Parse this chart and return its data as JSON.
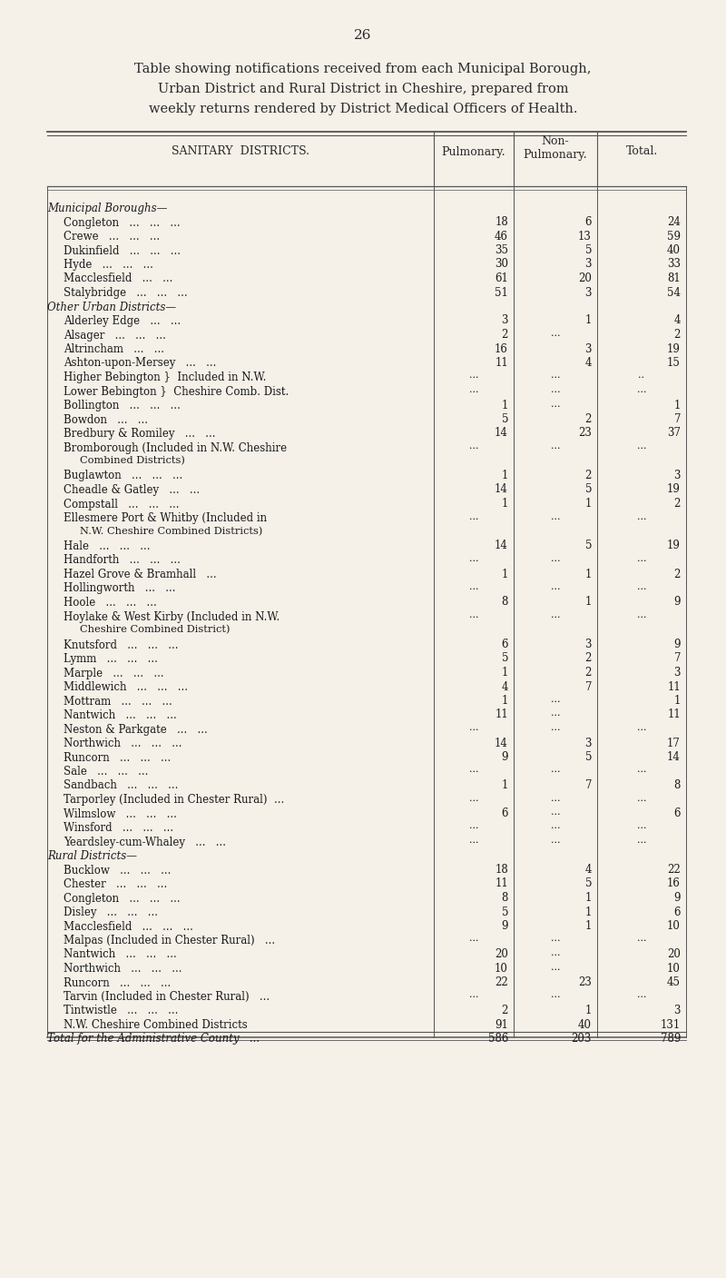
{
  "page_number": "26",
  "title_lines": [
    "Table showing notifications received from each Municipal Borough,",
    "Urban District and Rural District in Cheshire, prepared from",
    "weekly returns rendered by District Medical Officers of Health."
  ],
  "background_color": "#f5f0e8",
  "rows": [
    {
      "indent": 0,
      "section": true,
      "text": "Municipal Boroughs—",
      "pulm": "",
      "nonpulm": "",
      "total": ""
    },
    {
      "indent": 1,
      "section": false,
      "text": "Congleton   ...   ...   ...",
      "pulm": "18",
      "nonpulm": "6",
      "total": "24"
    },
    {
      "indent": 1,
      "section": false,
      "text": "Crewe   ...   ...   ...",
      "pulm": "46",
      "nonpulm": "13",
      "total": "59"
    },
    {
      "indent": 1,
      "section": false,
      "text": "Dukinfield   ...   ...   ...",
      "pulm": "35",
      "nonpulm": "5",
      "total": "40"
    },
    {
      "indent": 1,
      "section": false,
      "text": "Hyde   ...   ...   ...",
      "pulm": "30",
      "nonpulm": "3",
      "total": "33"
    },
    {
      "indent": 1,
      "section": false,
      "text": "Macclesfield   ...   ...",
      "pulm": "61",
      "nonpulm": "20",
      "total": "81"
    },
    {
      "indent": 1,
      "section": false,
      "text": "Stalybridge   ...   ...   ...",
      "pulm": "51",
      "nonpulm": "3",
      "total": "54"
    },
    {
      "indent": 0,
      "section": true,
      "text": "Other Urban Districts—",
      "pulm": "",
      "nonpulm": "",
      "total": ""
    },
    {
      "indent": 1,
      "section": false,
      "text": "Alderley Edge   ...   ...",
      "pulm": "3",
      "nonpulm": "1",
      "total": "4"
    },
    {
      "indent": 1,
      "section": false,
      "text": "Alsager   ...   ...   ...",
      "pulm": "2",
      "nonpulm": "...",
      "total": "2"
    },
    {
      "indent": 1,
      "section": false,
      "text": "Altrincham   ...   ...",
      "pulm": "16",
      "nonpulm": "3",
      "total": "19"
    },
    {
      "indent": 1,
      "section": false,
      "text": "Ashton-upon-Mersey   ...   ...",
      "pulm": "11",
      "nonpulm": "4",
      "total": "15"
    },
    {
      "indent": 1,
      "section": false,
      "text": "Higher Bebington }  Included in N.W.",
      "pulm": "...",
      "nonpulm": "...",
      "total": ".."
    },
    {
      "indent": 1,
      "section": false,
      "text": "Lower Bebington }  Cheshire Comb. Dist.",
      "pulm": "...",
      "nonpulm": "...",
      "total": "..."
    },
    {
      "indent": 1,
      "section": false,
      "text": "Bollington   ...   ...   ...",
      "pulm": "1",
      "nonpulm": "...",
      "total": "1"
    },
    {
      "indent": 1,
      "section": false,
      "text": "Bowdon   ...   ...",
      "pulm": "5",
      "nonpulm": "2",
      "total": "7"
    },
    {
      "indent": 1,
      "section": false,
      "text": "Bredbury & Romiley   ...   ...",
      "pulm": "14",
      "nonpulm": "23",
      "total": "37"
    },
    {
      "indent": 1,
      "section": false,
      "text": "Bromborough (Included in N.W. Cheshire",
      "pulm": "...",
      "nonpulm": "...",
      "total": "..."
    },
    {
      "indent": 2,
      "section": false,
      "text": "Combined Districts)",
      "pulm": "",
      "nonpulm": "",
      "total": ""
    },
    {
      "indent": 1,
      "section": false,
      "text": "Buglawton   ...   ...   ...",
      "pulm": "1",
      "nonpulm": "2",
      "total": "3"
    },
    {
      "indent": 1,
      "section": false,
      "text": "Cheadle & Gatley   ...   ...",
      "pulm": "14",
      "nonpulm": "5",
      "total": "19"
    },
    {
      "indent": 1,
      "section": false,
      "text": "Compstall   ...   ...   ...",
      "pulm": "1",
      "nonpulm": "1",
      "total": "2"
    },
    {
      "indent": 1,
      "section": false,
      "text": "Ellesmere Port & Whitby (Included in",
      "pulm": "...",
      "nonpulm": "...",
      "total": "..."
    },
    {
      "indent": 2,
      "section": false,
      "text": "N.W. Cheshire Combined Districts)",
      "pulm": "",
      "nonpulm": "",
      "total": ""
    },
    {
      "indent": 1,
      "section": false,
      "text": "Hale   ...   ...   ...",
      "pulm": "14",
      "nonpulm": "5",
      "total": "19"
    },
    {
      "indent": 1,
      "section": false,
      "text": "Handforth   ...   ...   ...",
      "pulm": "...",
      "nonpulm": "...",
      "total": "..."
    },
    {
      "indent": 1,
      "section": false,
      "text": "Hazel Grove & Bramhall   ...",
      "pulm": "1",
      "nonpulm": "1",
      "total": "2"
    },
    {
      "indent": 1,
      "section": false,
      "text": "Hollingworth   ...   ...",
      "pulm": "...",
      "nonpulm": "...",
      "total": "..."
    },
    {
      "indent": 1,
      "section": false,
      "text": "Hoole   ...   ...   ...",
      "pulm": "8",
      "nonpulm": "1",
      "total": "9"
    },
    {
      "indent": 1,
      "section": false,
      "text": "Hoylake & West Kirby (Included in N.W.",
      "pulm": "...",
      "nonpulm": "...",
      "total": "..."
    },
    {
      "indent": 2,
      "section": false,
      "text": "Cheshire Combined District)",
      "pulm": "",
      "nonpulm": "",
      "total": ""
    },
    {
      "indent": 1,
      "section": false,
      "text": "Knutsford   ...   ...   ...",
      "pulm": "6",
      "nonpulm": "3",
      "total": "9"
    },
    {
      "indent": 1,
      "section": false,
      "text": "Lymm   ...   ...   ...",
      "pulm": "5",
      "nonpulm": "2",
      "total": "7"
    },
    {
      "indent": 1,
      "section": false,
      "text": "Marple   ...   ...   ...",
      "pulm": "1",
      "nonpulm": "2",
      "total": "3"
    },
    {
      "indent": 1,
      "section": false,
      "text": "Middlewich   ...   ...   ...",
      "pulm": "4",
      "nonpulm": "7",
      "total": "11"
    },
    {
      "indent": 1,
      "section": false,
      "text": "Mottram   ...   ...   ...",
      "pulm": "1",
      "nonpulm": "...",
      "total": "1"
    },
    {
      "indent": 1,
      "section": false,
      "text": "Nantwich   ...   ...   ...",
      "pulm": "11",
      "nonpulm": "...",
      "total": "11"
    },
    {
      "indent": 1,
      "section": false,
      "text": "Neston & Parkgate   ...   ...",
      "pulm": "...",
      "nonpulm": "...",
      "total": "..."
    },
    {
      "indent": 1,
      "section": false,
      "text": "Northwich   ...   ...   ...",
      "pulm": "14",
      "nonpulm": "3",
      "total": "17"
    },
    {
      "indent": 1,
      "section": false,
      "text": "Runcorn   ...   ...   ...",
      "pulm": "9",
      "nonpulm": "5",
      "total": "14"
    },
    {
      "indent": 1,
      "section": false,
      "text": "Sale   ...   ...   ...",
      "pulm": "...",
      "nonpulm": "...",
      "total": "..."
    },
    {
      "indent": 1,
      "section": false,
      "text": "Sandbach   ...   ...   ...",
      "pulm": "1",
      "nonpulm": "7",
      "total": "8"
    },
    {
      "indent": 1,
      "section": false,
      "text": "Tarporley (Included in Chester Rural)  ...",
      "pulm": "...",
      "nonpulm": "...",
      "total": "..."
    },
    {
      "indent": 1,
      "section": false,
      "text": "Wilmslow   ...   ...   ...",
      "pulm": "6",
      "nonpulm": "...",
      "total": "6"
    },
    {
      "indent": 1,
      "section": false,
      "text": "Winsford   ...   ...   ...",
      "pulm": "...",
      "nonpulm": "...",
      "total": "..."
    },
    {
      "indent": 1,
      "section": false,
      "text": "Yeardsley-cum-Whaley   ...   ...",
      "pulm": "...",
      "nonpulm": "...",
      "total": "..."
    },
    {
      "indent": 0,
      "section": true,
      "text": "Rural Districts—",
      "pulm": "",
      "nonpulm": "",
      "total": ""
    },
    {
      "indent": 1,
      "section": false,
      "text": "Bucklow   ...   ...   ...",
      "pulm": "18",
      "nonpulm": "4",
      "total": "22"
    },
    {
      "indent": 1,
      "section": false,
      "text": "Chester   ...   ...   ...",
      "pulm": "11",
      "nonpulm": "5",
      "total": "16"
    },
    {
      "indent": 1,
      "section": false,
      "text": "Congleton   ...   ...   ...",
      "pulm": "8",
      "nonpulm": "1",
      "total": "9"
    },
    {
      "indent": 1,
      "section": false,
      "text": "Disley   ...   ...   ...",
      "pulm": "5",
      "nonpulm": "1",
      "total": "6"
    },
    {
      "indent": 1,
      "section": false,
      "text": "Macclesfield   ...   ...   ...",
      "pulm": "9",
      "nonpulm": "1",
      "total": "10"
    },
    {
      "indent": 1,
      "section": false,
      "text": "Malpas (Included in Chester Rural)   ...",
      "pulm": "...",
      "nonpulm": "...",
      "total": "..."
    },
    {
      "indent": 1,
      "section": false,
      "text": "Nantwich   ...   ...   ...",
      "pulm": "20",
      "nonpulm": "...",
      "total": "20"
    },
    {
      "indent": 1,
      "section": false,
      "text": "Northwich   ...   ...   ...",
      "pulm": "10",
      "nonpulm": "...",
      "total": "10"
    },
    {
      "indent": 1,
      "section": false,
      "text": "Runcorn   ...   ...   ...",
      "pulm": "22",
      "nonpulm": "23",
      "total": "45"
    },
    {
      "indent": 1,
      "section": false,
      "text": "Tarvin (Included in Chester Rural)   ...",
      "pulm": "...",
      "nonpulm": "...",
      "total": "..."
    },
    {
      "indent": 1,
      "section": false,
      "text": "Tintwistle   ...   ...   ...",
      "pulm": "2",
      "nonpulm": "1",
      "total": "3"
    },
    {
      "indent": 1,
      "section": false,
      "text": "N.W. Cheshire Combined Districts",
      "pulm": "91",
      "nonpulm": "40",
      "total": "131"
    },
    {
      "indent": 0,
      "section": false,
      "text": "Total for the Administrative County   ...",
      "pulm": "586",
      "nonpulm": "203",
      "total": "789"
    }
  ]
}
